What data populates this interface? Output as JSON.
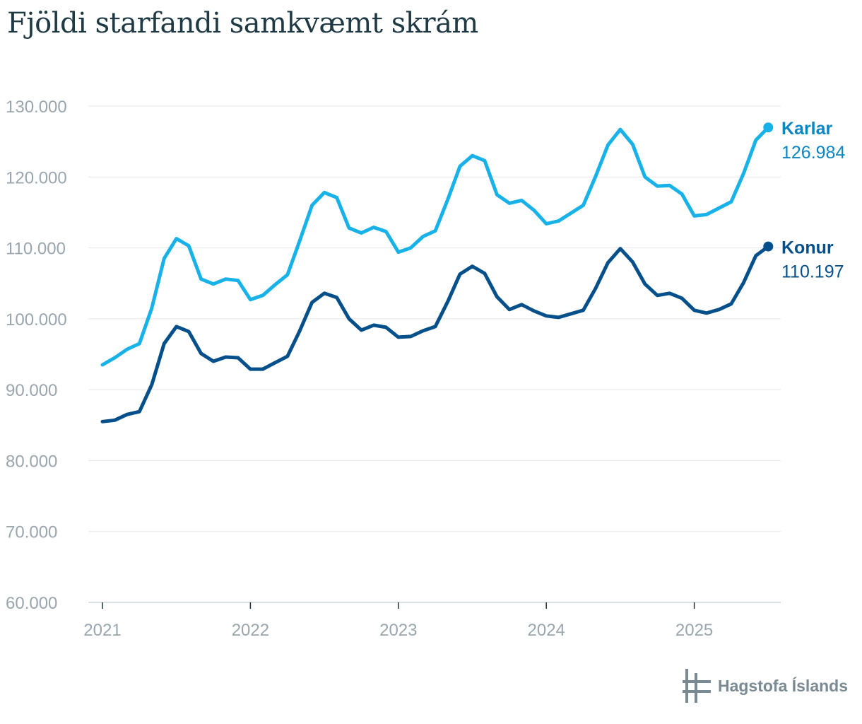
{
  "title": "Fjöldi starfandi samkvæmt skrám",
  "logo_text": "Hagstofa Íslands",
  "chart_data": {
    "type": "line",
    "title": "Fjöldi starfandi samkvæmt skrám",
    "xlabel": "",
    "ylabel": "",
    "x_ticks": [
      "2021",
      "2022",
      "2023",
      "2024",
      "2025"
    ],
    "y_ticks": [
      "60.000",
      "70.000",
      "80.000",
      "90.000",
      "100.000",
      "110.000",
      "120.000",
      "130.000"
    ],
    "ylim": [
      60000,
      130000
    ],
    "grid": true,
    "x_start": "2021-01",
    "series": [
      {
        "name": "Karlar",
        "last_value_label": "126.984",
        "color": "#19b2e8",
        "values": [
          93500,
          94500,
          95700,
          96500,
          101500,
          108500,
          111300,
          110300,
          105600,
          104900,
          105600,
          105400,
          102700,
          103300,
          104800,
          106200,
          111000,
          116000,
          117800,
          117100,
          112800,
          112100,
          112900,
          112300,
          109400,
          110000,
          111600,
          112400,
          116800,
          121500,
          123000,
          122300,
          117500,
          116300,
          116700,
          115300,
          113400,
          113800,
          114900,
          116000,
          120100,
          124500,
          126700,
          124600,
          120000,
          118700,
          118800,
          117600,
          114500,
          114700,
          115600,
          116500,
          120500,
          125200,
          126984
        ]
      },
      {
        "name": "Konur",
        "last_value_label": "110.197",
        "color": "#05508a",
        "values": [
          85500,
          85700,
          86500,
          86900,
          90700,
          96500,
          98900,
          98200,
          95100,
          94000,
          94600,
          94500,
          92900,
          92900,
          93800,
          94700,
          98300,
          102300,
          103600,
          103000,
          100000,
          98400,
          99100,
          98800,
          97400,
          97500,
          98300,
          98900,
          102400,
          106300,
          107400,
          106400,
          103100,
          101300,
          102000,
          101100,
          100400,
          100200,
          100700,
          101200,
          104300,
          107900,
          109900,
          108000,
          104900,
          103300,
          103600,
          102900,
          101200,
          100800,
          101300,
          102100,
          105100,
          108900,
          110197
        ]
      }
    ]
  }
}
